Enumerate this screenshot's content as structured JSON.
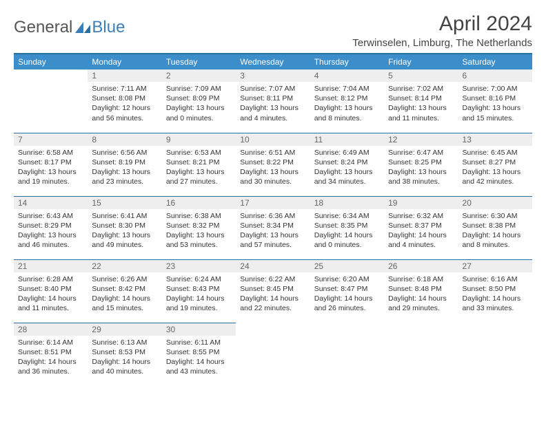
{
  "logo": {
    "text1": "General",
    "text2": "Blue"
  },
  "title": "April 2024",
  "location": "Terwinselen, Limburg, The Netherlands",
  "colors": {
    "header_bg": "#3b8ec9",
    "header_border": "#2a6fa0",
    "daynum_bg": "#eeeeee",
    "logo_blue": "#3b7fb8",
    "text": "#333333"
  },
  "dayNames": [
    "Sunday",
    "Monday",
    "Tuesday",
    "Wednesday",
    "Thursday",
    "Friday",
    "Saturday"
  ],
  "weeks": [
    [
      {
        "n": "",
        "empty": true
      },
      {
        "n": "1",
        "sr": "7:11 AM",
        "ss": "8:08 PM",
        "dl": "12 hours and 56 minutes."
      },
      {
        "n": "2",
        "sr": "7:09 AM",
        "ss": "8:09 PM",
        "dl": "13 hours and 0 minutes."
      },
      {
        "n": "3",
        "sr": "7:07 AM",
        "ss": "8:11 PM",
        "dl": "13 hours and 4 minutes."
      },
      {
        "n": "4",
        "sr": "7:04 AM",
        "ss": "8:12 PM",
        "dl": "13 hours and 8 minutes."
      },
      {
        "n": "5",
        "sr": "7:02 AM",
        "ss": "8:14 PM",
        "dl": "13 hours and 11 minutes."
      },
      {
        "n": "6",
        "sr": "7:00 AM",
        "ss": "8:16 PM",
        "dl": "13 hours and 15 minutes."
      }
    ],
    [
      {
        "n": "7",
        "sr": "6:58 AM",
        "ss": "8:17 PM",
        "dl": "13 hours and 19 minutes."
      },
      {
        "n": "8",
        "sr": "6:56 AM",
        "ss": "8:19 PM",
        "dl": "13 hours and 23 minutes."
      },
      {
        "n": "9",
        "sr": "6:53 AM",
        "ss": "8:21 PM",
        "dl": "13 hours and 27 minutes."
      },
      {
        "n": "10",
        "sr": "6:51 AM",
        "ss": "8:22 PM",
        "dl": "13 hours and 30 minutes."
      },
      {
        "n": "11",
        "sr": "6:49 AM",
        "ss": "8:24 PM",
        "dl": "13 hours and 34 minutes."
      },
      {
        "n": "12",
        "sr": "6:47 AM",
        "ss": "8:25 PM",
        "dl": "13 hours and 38 minutes."
      },
      {
        "n": "13",
        "sr": "6:45 AM",
        "ss": "8:27 PM",
        "dl": "13 hours and 42 minutes."
      }
    ],
    [
      {
        "n": "14",
        "sr": "6:43 AM",
        "ss": "8:29 PM",
        "dl": "13 hours and 46 minutes."
      },
      {
        "n": "15",
        "sr": "6:41 AM",
        "ss": "8:30 PM",
        "dl": "13 hours and 49 minutes."
      },
      {
        "n": "16",
        "sr": "6:38 AM",
        "ss": "8:32 PM",
        "dl": "13 hours and 53 minutes."
      },
      {
        "n": "17",
        "sr": "6:36 AM",
        "ss": "8:34 PM",
        "dl": "13 hours and 57 minutes."
      },
      {
        "n": "18",
        "sr": "6:34 AM",
        "ss": "8:35 PM",
        "dl": "14 hours and 0 minutes."
      },
      {
        "n": "19",
        "sr": "6:32 AM",
        "ss": "8:37 PM",
        "dl": "14 hours and 4 minutes."
      },
      {
        "n": "20",
        "sr": "6:30 AM",
        "ss": "8:38 PM",
        "dl": "14 hours and 8 minutes."
      }
    ],
    [
      {
        "n": "21",
        "sr": "6:28 AM",
        "ss": "8:40 PM",
        "dl": "14 hours and 11 minutes."
      },
      {
        "n": "22",
        "sr": "6:26 AM",
        "ss": "8:42 PM",
        "dl": "14 hours and 15 minutes."
      },
      {
        "n": "23",
        "sr": "6:24 AM",
        "ss": "8:43 PM",
        "dl": "14 hours and 19 minutes."
      },
      {
        "n": "24",
        "sr": "6:22 AM",
        "ss": "8:45 PM",
        "dl": "14 hours and 22 minutes."
      },
      {
        "n": "25",
        "sr": "6:20 AM",
        "ss": "8:47 PM",
        "dl": "14 hours and 26 minutes."
      },
      {
        "n": "26",
        "sr": "6:18 AM",
        "ss": "8:48 PM",
        "dl": "14 hours and 29 minutes."
      },
      {
        "n": "27",
        "sr": "6:16 AM",
        "ss": "8:50 PM",
        "dl": "14 hours and 33 minutes."
      }
    ],
    [
      {
        "n": "28",
        "sr": "6:14 AM",
        "ss": "8:51 PM",
        "dl": "14 hours and 36 minutes."
      },
      {
        "n": "29",
        "sr": "6:13 AM",
        "ss": "8:53 PM",
        "dl": "14 hours and 40 minutes."
      },
      {
        "n": "30",
        "sr": "6:11 AM",
        "ss": "8:55 PM",
        "dl": "14 hours and 43 minutes."
      },
      {
        "n": "",
        "empty": true
      },
      {
        "n": "",
        "empty": true
      },
      {
        "n": "",
        "empty": true
      },
      {
        "n": "",
        "empty": true
      }
    ]
  ],
  "labels": {
    "sunrise": "Sunrise:",
    "sunset": "Sunset:",
    "daylight": "Daylight:"
  }
}
